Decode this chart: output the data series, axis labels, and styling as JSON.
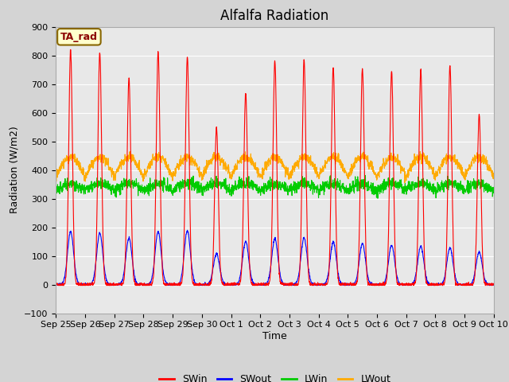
{
  "title": "Alfalfa Radiation",
  "ylabel": "Radiation (W/m2)",
  "xlabel": "Time",
  "ylim": [
    -100,
    900
  ],
  "yticks": [
    -100,
    0,
    100,
    200,
    300,
    400,
    500,
    600,
    700,
    800,
    900
  ],
  "xtick_labels": [
    "Sep 25",
    "Sep 26",
    "Sep 27",
    "Sep 28",
    "Sep 29",
    "Sep 30",
    "Oct 1",
    "Oct 2",
    "Oct 3",
    "Oct 4",
    "Oct 5",
    "Oct 6",
    "Oct 7",
    "Oct 8",
    "Oct 9",
    "Oct 10"
  ],
  "legend_entries": [
    "SWin",
    "SWout",
    "LWin",
    "LWout"
  ],
  "legend_colors": [
    "#ff0000",
    "#0000ff",
    "#00cc00",
    "#ffaa00"
  ],
  "annotation_text": "TA_rad",
  "annotation_bg": "#ffffcc",
  "annotation_border": "#886600",
  "plot_bg": "#e8e8e8",
  "fig_bg": "#d4d4d4",
  "grid_color": "#ffffff",
  "title_fontsize": 12,
  "axis_fontsize": 9,
  "tick_fontsize": 8,
  "num_days": 15,
  "seed": 42,
  "day_peaks_SWin": [
    820,
    810,
    720,
    815,
    795,
    550,
    670,
    780,
    785,
    760,
    755,
    745,
    750,
    765,
    595
  ],
  "day_peaks_SWout": [
    185,
    180,
    162,
    185,
    188,
    108,
    150,
    160,
    163,
    148,
    143,
    138,
    133,
    128,
    113
  ],
  "LWin_base": 328,
  "LWout_base": 375
}
